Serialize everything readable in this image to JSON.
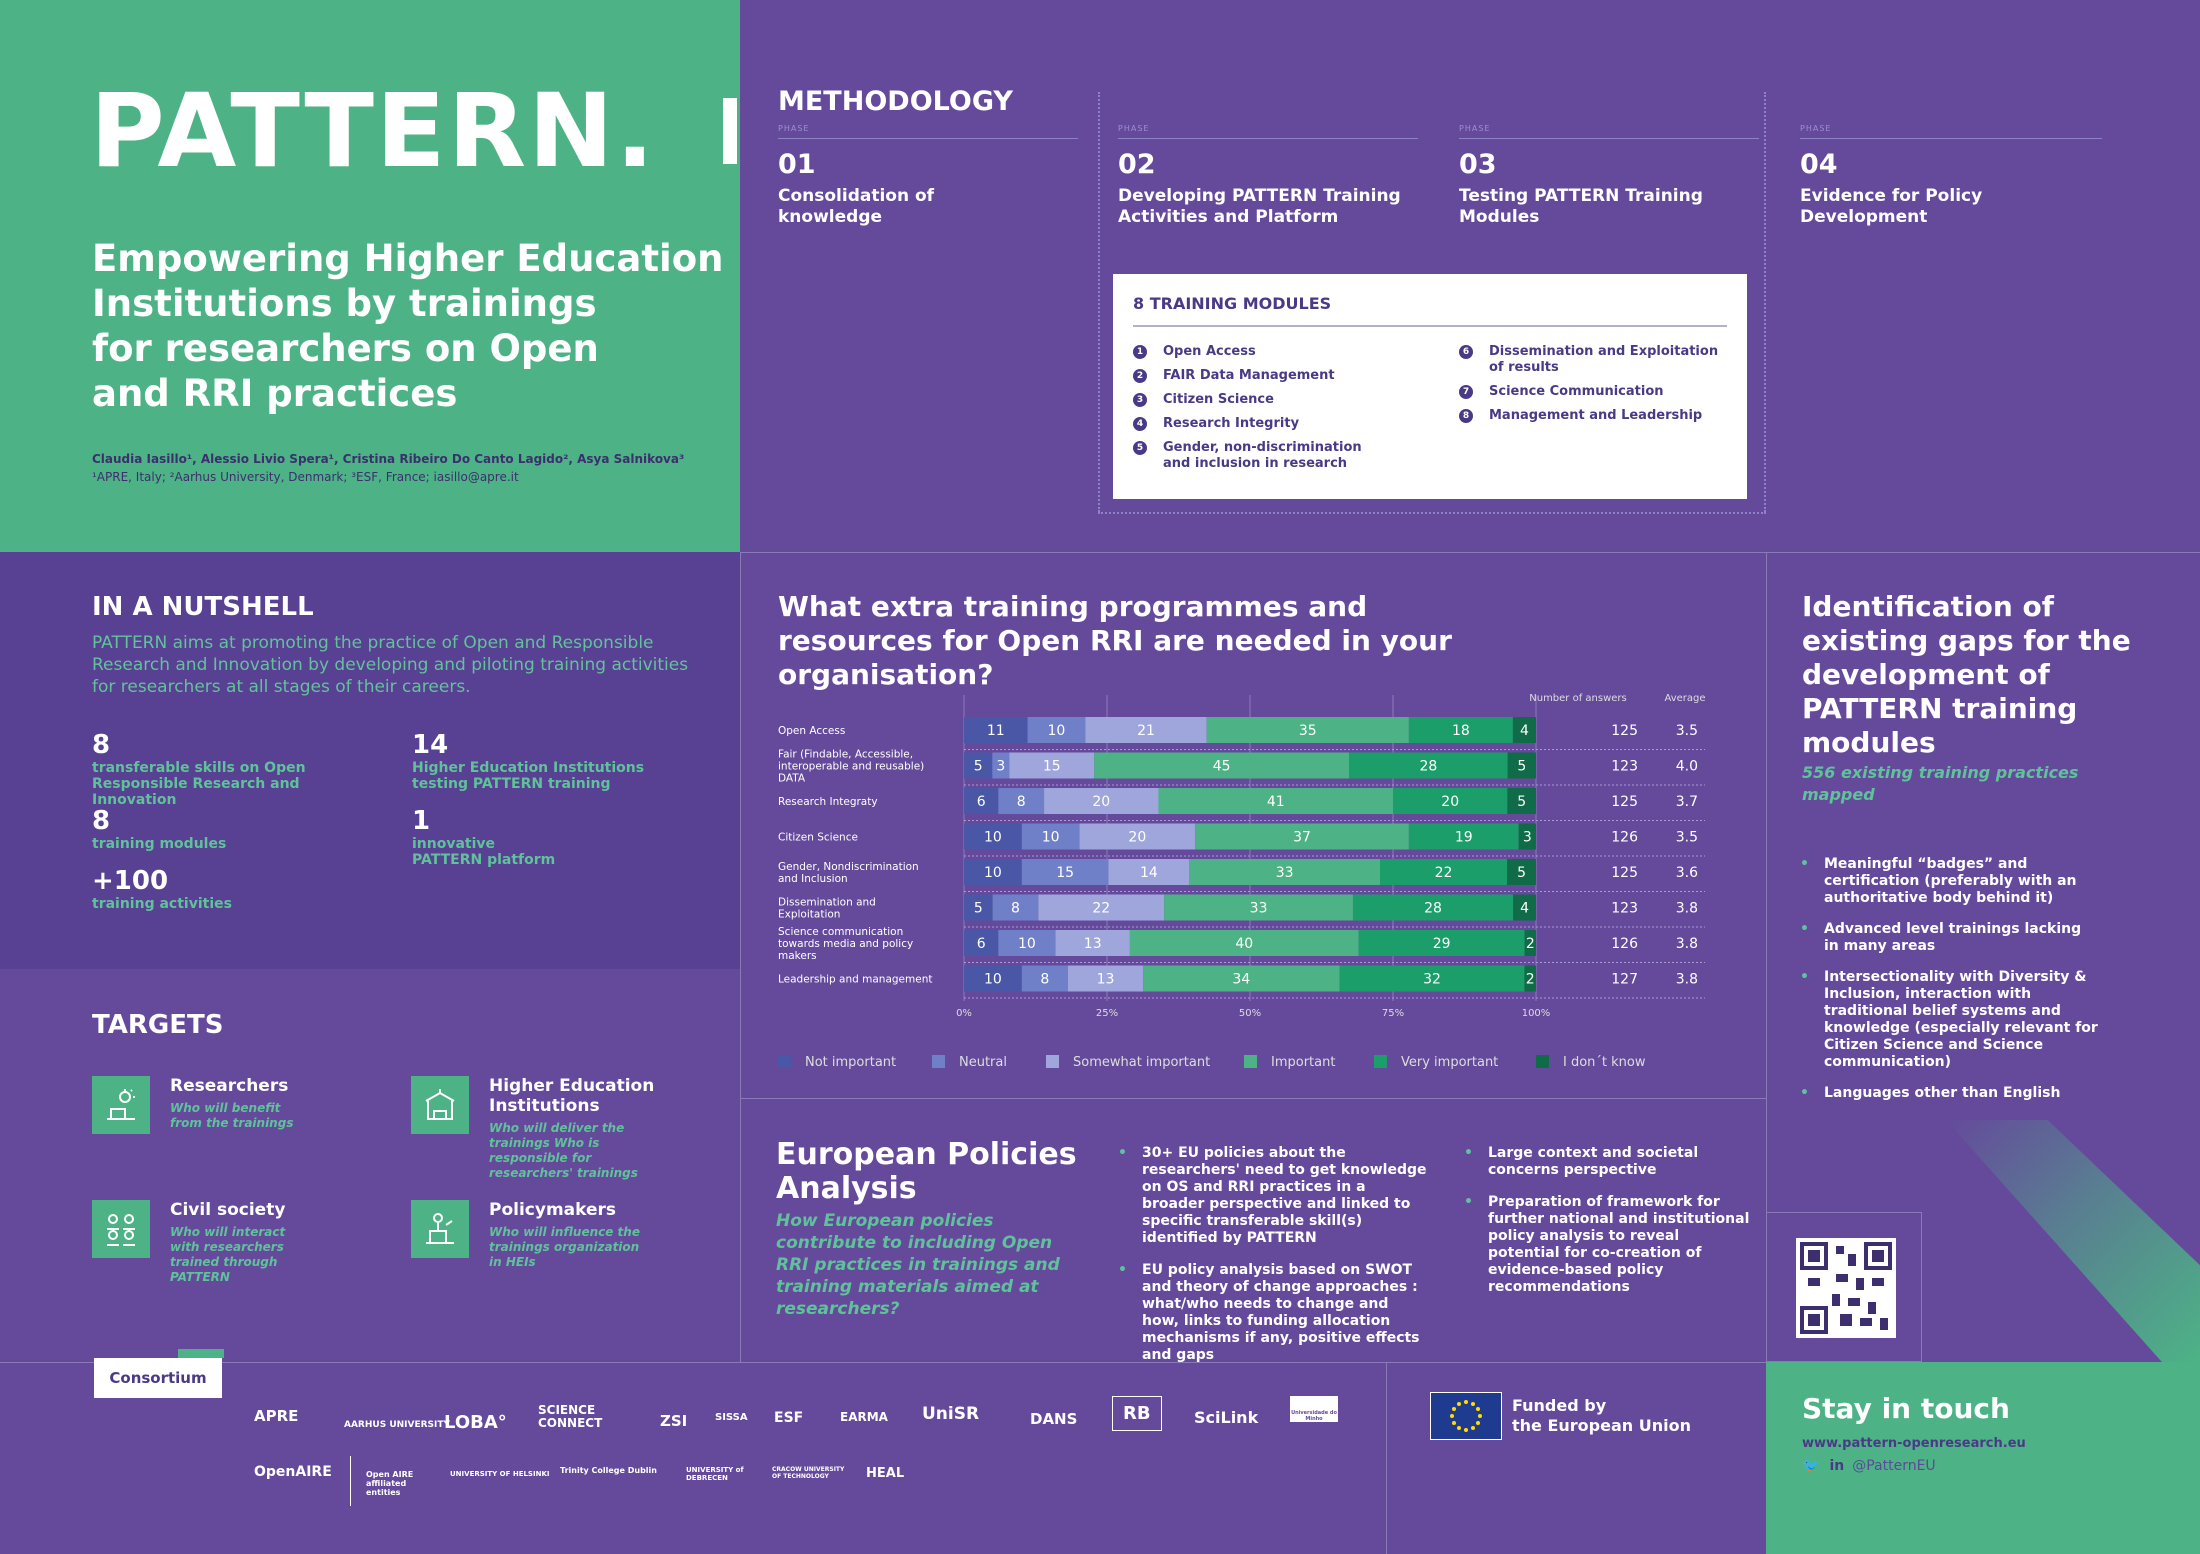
{
  "header": {
    "logo": "PATTERN.",
    "title": "Empowering Higher Education Institutions by trainings for researchers on Open and RRI practices",
    "title_lines": [
      "Empowering Higher Education",
      "Institutions by trainings",
      "for researchers on Open",
      "and RRI practices"
    ],
    "authors": "Claudia Iasillo¹, Alessio Livio Spera¹, Cristina Ribeiro Do Canto Lagido², Asya Salnikova³",
    "affiliations": "¹APRE, Italy; ²Aarhus University, Denmark; ³ESF, France; iasillo@apre.it"
  },
  "methodology": {
    "title": "METHODOLOGY",
    "phase_label": "PHASE",
    "phases": [
      {
        "num": "01",
        "title": "Consolidation of knowledge"
      },
      {
        "num": "02",
        "title": "Developing PATTERN Training Activities and Platform"
      },
      {
        "num": "03",
        "title": "Testing PATTERN Training Modules"
      },
      {
        "num": "04",
        "title": "Evidence for Policy Development"
      }
    ],
    "modules_title": "8 TRAINING MODULES",
    "modules": [
      {
        "n": "1",
        "label": "Open Access"
      },
      {
        "n": "2",
        "label": "FAIR Data Management"
      },
      {
        "n": "3",
        "label": "Citizen Science"
      },
      {
        "n": "4",
        "label": "Research Integrity"
      },
      {
        "n": "5",
        "label": "Gender, non-discrimination and inclusion in research"
      },
      {
        "n": "6",
        "label": "Dissemination and Exploitation of results"
      },
      {
        "n": "7",
        "label": "Science Communication"
      },
      {
        "n": "8",
        "label": "Management and Leadership"
      }
    ]
  },
  "nutshell": {
    "title": "IN A NUTSHELL",
    "text": "PATTERN aims at promoting the practice of Open and Responsible Research and Innovation by developing and piloting training activities for researchers at all stages of their careers.",
    "stats": [
      {
        "num": "8",
        "label": "transferable skills on Open Responsible Research and Innovation"
      },
      {
        "num": "14",
        "label": "Higher Education Institutions testing PATTERN training"
      },
      {
        "num": "8",
        "label": "training modules"
      },
      {
        "num": "1",
        "label": "innovative PATTERN platform"
      },
      {
        "num": "+100",
        "label": "training activities"
      }
    ]
  },
  "targets": {
    "title": "TARGETS",
    "items": [
      {
        "name": "Researchers",
        "desc": "Who will benefit from the trainings"
      },
      {
        "name": "Higher Education Institutions",
        "desc": "Who will deliver the trainings Who is responsible for researchers' trainings"
      },
      {
        "name": "Civil society",
        "desc": "Who will interact with researchers trained through PATTERN"
      },
      {
        "name": "Policymakers",
        "desc": "Who will influence the trainings organization in HEIs"
      }
    ]
  },
  "chart_data": {
    "type": "bar",
    "orientation": "horizontal-stacked-percent",
    "title": "What extra training programmes and resources for Open RRI are needed in your organisation?",
    "categories": [
      "Open Access",
      "Fair (Findable, Accessible, interoperable and reusable) DATA",
      "Research Integraty",
      "Citizen Science",
      "Gender, Nondiscrimination and Inclusion",
      "Dissemination and Exploitation",
      "Science communication towards media and policy makers",
      "Leadership and management"
    ],
    "series": [
      {
        "name": "Not important",
        "color": "#4a56a6",
        "values": [
          11,
          5,
          6,
          10,
          10,
          5,
          6,
          10
        ]
      },
      {
        "name": "Neutral",
        "color": "#6f7fc8",
        "values": [
          10,
          3,
          8,
          10,
          15,
          8,
          10,
          8
        ]
      },
      {
        "name": "Somewhat important",
        "color": "#9fa6dc",
        "values": [
          21,
          15,
          20,
          20,
          14,
          22,
          13,
          13
        ]
      },
      {
        "name": "Important",
        "color": "#4db386",
        "values": [
          35,
          45,
          41,
          37,
          33,
          33,
          40,
          34
        ]
      },
      {
        "name": "Very important",
        "color": "#1b9e6a",
        "values": [
          18,
          28,
          20,
          19,
          22,
          28,
          29,
          32
        ]
      },
      {
        "name": "I don´t know",
        "color": "#106b48",
        "values": [
          4,
          5,
          5,
          3,
          5,
          4,
          2,
          2
        ]
      }
    ],
    "extra_columns": {
      "headers": [
        "Number of answers",
        "Average"
      ],
      "answers": [
        125,
        123,
        125,
        126,
        125,
        123,
        126,
        127
      ],
      "average": [
        "3.5",
        "4.0",
        "3.7",
        "3.5",
        "3.6",
        "3.8",
        "3.8",
        "3.8"
      ]
    },
    "xticks": [
      "0%",
      "25%",
      "50%",
      "75%",
      "100%"
    ],
    "xlim": [
      0,
      100
    ]
  },
  "gaps": {
    "title": "Identification of existing gaps for the development of PATTERN training modules",
    "subtitle": "556 existing training practices mapped",
    "items": [
      "Meaningful “badges” and certification (preferably with an authoritative body behind it)",
      "Advanced level trainings lacking in many areas",
      "Intersectionality with Diversity & Inclusion, interaction with traditional belief systems and knowledge (especially relevant for Citizen Science and Science communication)",
      "Languages other than English"
    ]
  },
  "policies": {
    "title_line1": "European Policies",
    "title_line2": "Analysis",
    "subtitle": "How European policies contribute to including Open RRI practices in trainings and training materials aimed at researchers?",
    "col1": [
      "30+ EU policies about the researchers' need to get knowledge on OS and RRI practices in a broader perspective and linked to specific transferable skill(s) identified by PATTERN",
      "EU policy analysis based on SWOT and theory of change approaches : what/who needs to change and how, links to funding allocation  mechanisms if any, positive effects and gaps"
    ],
    "col2": [
      "Large context and societal concerns perspective",
      "Preparation of framework for further national and institutional policy analysis to reveal potential for co-creation of evidence-based policy recommendations"
    ]
  },
  "footer": {
    "consortium": "Consortium",
    "partners_row1": [
      "APRE",
      "AARHUS UNIVERSITY",
      "LOBA°",
      "SCIENCE CONNECT",
      "ZSI",
      "SISSA",
      "ESF",
      "EARMA",
      "UniSR",
      "DANS",
      "RB",
      "SciLink",
      "Universidade do Minho"
    ],
    "partners_row2": [
      "OpenAIRE",
      "Open AIRE affiliated entities",
      "UNIVERSITY OF HELSINKI",
      "Trinity College Dublin",
      "UNIVERSITY of DEBRECEN",
      "CRACOW UNIVERSITY OF TECHNOLOGY",
      "HEAL"
    ],
    "funded_line1": "Funded by",
    "funded_line2": "the European Union",
    "stay_title": "Stay in touch",
    "url": "www.pattern-openresearch.eu",
    "social": "@PatternEU",
    "colors": {
      "green": "#4db386",
      "purple": "#654a9c"
    }
  }
}
